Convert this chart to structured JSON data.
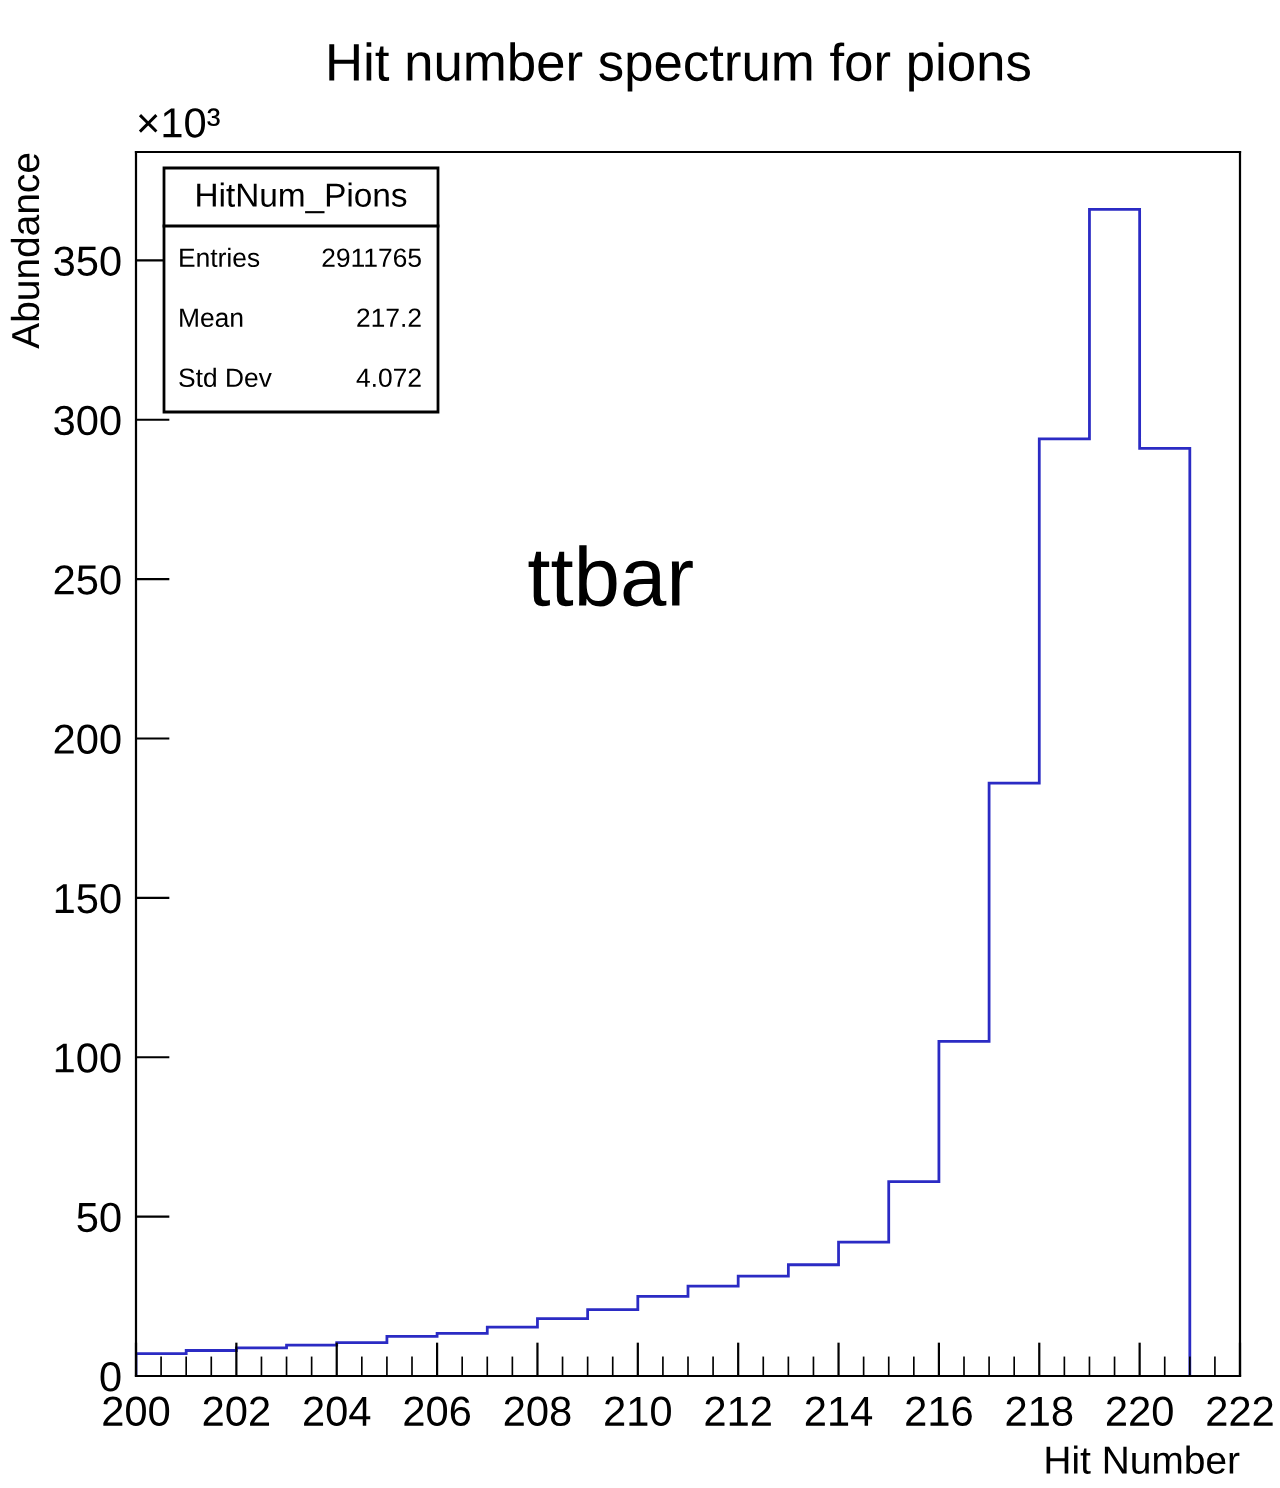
{
  "chart_data": {
    "type": "histogram",
    "title": "Hit number spectrum for pions",
    "xlabel": "Hit Number",
    "ylabel": "Abundance",
    "bins": [
      200,
      201,
      202,
      203,
      204,
      205,
      206,
      207,
      208,
      209,
      210,
      211,
      212,
      213,
      214,
      215,
      216,
      217,
      218,
      219,
      220,
      221
    ],
    "values": [
      7,
      8,
      8.8,
      9.7,
      10.5,
      12.4,
      13.4,
      15.3,
      18,
      20.8,
      25,
      28.2,
      31.3,
      34.9,
      42,
      61,
      105,
      186,
      294,
      366,
      291
    ],
    "color": "#2b2bc4",
    "xlim": [
      200,
      222
    ],
    "xticks": [
      200,
      202,
      204,
      206,
      208,
      210,
      212,
      214,
      216,
      218,
      220,
      222
    ],
    "ylim": [
      0,
      384
    ],
    "yticks": [
      0,
      50,
      100,
      150,
      200,
      250,
      300,
      350
    ],
    "grid": false,
    "legend": false,
    "annotations": [
      "×10³",
      "HitNum_Pions",
      "Entries",
      "2911765",
      "Mean",
      "217.2",
      "Std Dev",
      "4.072",
      "ttbar"
    ]
  }
}
